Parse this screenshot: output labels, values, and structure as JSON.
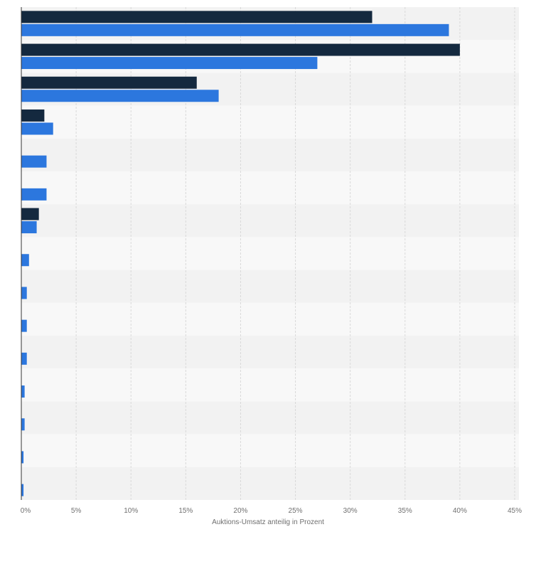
{
  "colors": {
    "series_1": "#14293f",
    "series_2": "#2c77de",
    "band_a": "#f2f2f2",
    "band_b": "#f8f8f8",
    "grid": "#d9d9d9",
    "tick_text": "#6f6f6f"
  },
  "chart_data": {
    "type": "bar",
    "orientation": "horizontal",
    "title": "",
    "xlabel": "Auktions-Umsatz anteilig in Prozent",
    "ylabel": "",
    "xlim": [
      0,
      45
    ],
    "x_ticks": [
      0,
      5,
      10,
      15,
      20,
      25,
      30,
      35,
      40,
      45
    ],
    "x_tick_labels": [
      "0%",
      "5%",
      "10%",
      "15%",
      "20%",
      "25%",
      "30%",
      "35%",
      "40%",
      "45%"
    ],
    "grid": true,
    "legend": "none",
    "categories": [
      "",
      "",
      "",
      "",
      "",
      "",
      "",
      "",
      "",
      "",
      "",
      "",
      "",
      "",
      ""
    ],
    "series": [
      {
        "values": [
          32,
          40,
          16,
          2.1,
          null,
          null,
          1.6,
          null,
          null,
          null,
          null,
          null,
          null,
          null,
          null
        ]
      },
      {
        "values": [
          39,
          27,
          18,
          2.9,
          2.3,
          2.3,
          1.4,
          0.7,
          0.5,
          0.5,
          0.5,
          0.3,
          0.3,
          0.2,
          0.2
        ]
      }
    ]
  }
}
